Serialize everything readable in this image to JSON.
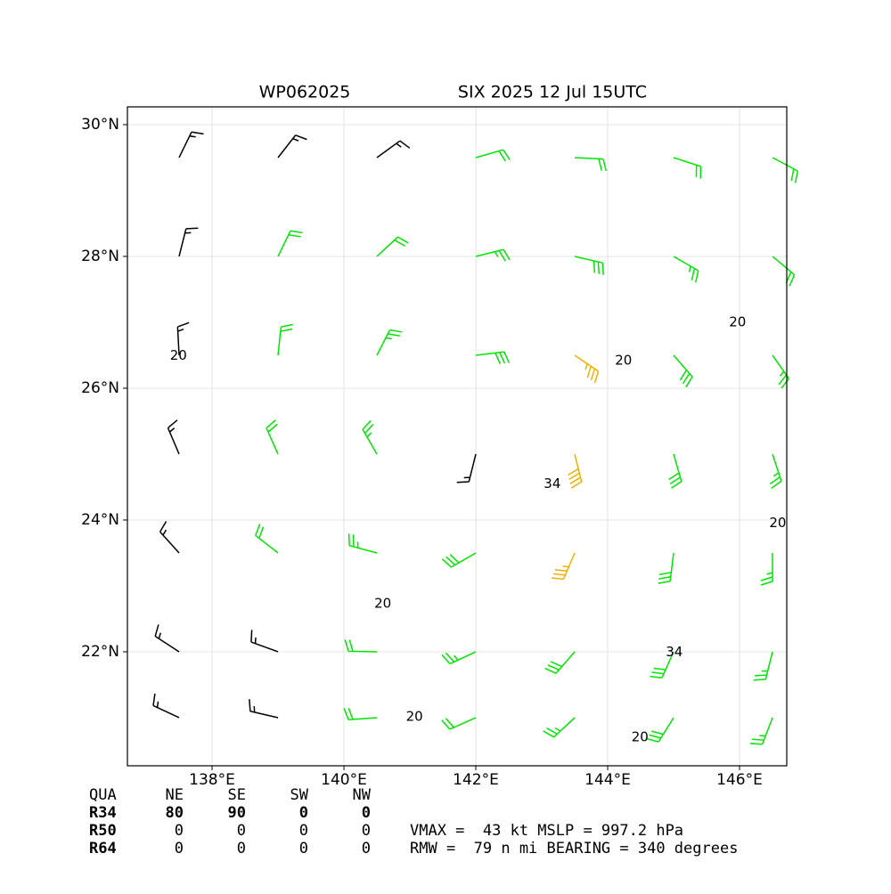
{
  "chart_data": {
    "type": "wind_barbs",
    "title_left": "WP062025",
    "title_right": "SIX 2025 12 Jul 15UTC",
    "xlim": [
      136.716,
      146.716
    ],
    "ylim": [
      20.27,
      30.27
    ],
    "xticks": [
      {
        "value": 138,
        "label": "138°E"
      },
      {
        "value": 140,
        "label": "140°E"
      },
      {
        "value": 142,
        "label": "142°E"
      },
      {
        "value": 144,
        "label": "144°E"
      },
      {
        "value": 146,
        "label": "146°E"
      }
    ],
    "yticks": [
      {
        "value": 22,
        "label": "22°N"
      },
      {
        "value": 24,
        "label": "24°N"
      },
      {
        "value": 26,
        "label": "26°N"
      },
      {
        "value": 28,
        "label": "28°N"
      },
      {
        "value": 30,
        "label": "30°N"
      }
    ],
    "grid": true,
    "barbs": {
      "lon": [
        137.5,
        139,
        140.5,
        142,
        143.5,
        145,
        146.5
      ],
      "lat": [
        29.5,
        28,
        26.5,
        25,
        23.5,
        22,
        21
      ],
      "speed": [
        [
          15,
          15,
          18,
          20,
          22,
          22,
          20
        ],
        [
          15,
          20,
          22,
          25,
          30,
          28,
          22
        ],
        [
          15,
          20,
          25,
          30,
          35,
          30,
          25
        ],
        [
          15,
          20,
          25,
          15,
          40,
          30,
          25
        ],
        [
          15,
          20,
          25,
          30,
          35,
          30,
          25
        ],
        [
          15,
          15,
          20,
          25,
          30,
          30,
          25
        ],
        [
          15,
          15,
          20,
          20,
          25,
          30,
          25
        ]
      ],
      "direction": [
        [
          26,
          38,
          54,
          74,
          93,
          108,
          118
        ],
        [
          14,
          26,
          47,
          76,
          103,
          120,
          130
        ],
        [
          357,
          6,
          27,
          83,
          124,
          139,
          145
        ],
        [
          337,
          336,
          330,
          194,
          166,
          164,
          162
        ],
        [
          318,
          308,
          285,
          240,
          203,
          187,
          180
        ],
        [
          303,
          290,
          271,
          245,
          221,
          204,
          194
        ],
        [
          295,
          283,
          266,
          246,
          227,
          212,
          201
        ]
      ]
    },
    "default_color": "#000000",
    "barb_colors": [
      {
        "min": 20,
        "color": "#00e600"
      },
      {
        "min": 34,
        "color": "#f0b000"
      }
    ],
    "contour_labels": [
      {
        "value": 20,
        "lon": 140.59,
        "lat": 22.73
      },
      {
        "value": 20,
        "lon": 141.07,
        "lat": 21.01
      },
      {
        "value": 20,
        "lon": 144.49,
        "lat": 20.7
      },
      {
        "value": 20,
        "lon": 146.58,
        "lat": 23.95
      },
      {
        "value": 20,
        "lon": 144.24,
        "lat": 26.42
      },
      {
        "value": 20,
        "lon": 145.97,
        "lat": 27.0
      },
      {
        "value": 20,
        "lon": 137.49,
        "lat": 26.49
      },
      {
        "value": 34,
        "lon": 143.16,
        "lat": 24.55
      },
      {
        "value": 34,
        "lon": 145.01,
        "lat": 21.99
      }
    ]
  },
  "radii_table": {
    "header": [
      "QUA",
      "NE",
      "SE",
      "SW",
      "NW"
    ],
    "rows": [
      {
        "label": "R34",
        "values": [
          80,
          90,
          0,
          0
        ]
      },
      {
        "label": "R50",
        "values": [
          0,
          0,
          0,
          0
        ]
      },
      {
        "label": "R64",
        "values": [
          0,
          0,
          0,
          0
        ]
      }
    ]
  },
  "summary": [
    "VMAX =  43 kt MSLP = 997.2 hPa",
    "RMW =  79 n mi BEARING = 340 degrees"
  ]
}
